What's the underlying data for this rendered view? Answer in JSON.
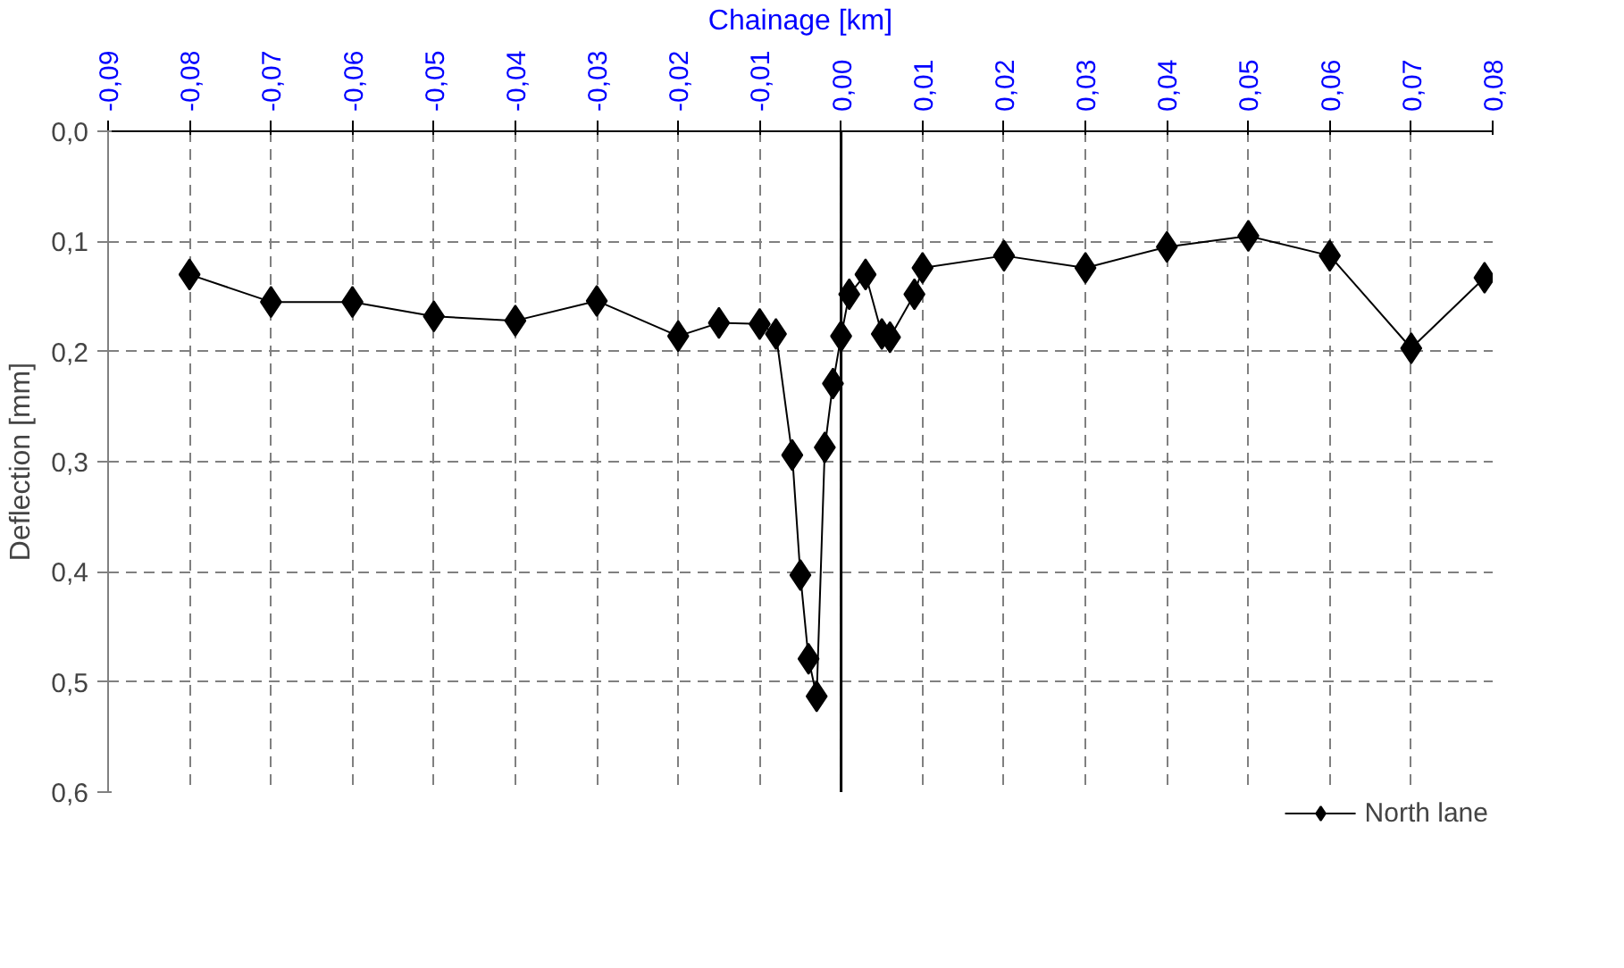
{
  "chart_data": {
    "type": "line",
    "xlabel": "Chainage [km]",
    "ylabel": "Deflection [mm]",
    "x": [
      -0.08,
      -0.07,
      -0.06,
      -0.05,
      -0.04,
      -0.03,
      -0.02,
      -0.015,
      -0.01,
      -0.008,
      -0.006,
      -0.005,
      -0.004,
      -0.003,
      -0.002,
      -0.001,
      0.0,
      0.001,
      0.003,
      0.005,
      0.006,
      0.009,
      0.01,
      0.02,
      0.03,
      0.04,
      0.05,
      0.06,
      0.07,
      0.079
    ],
    "series": [
      {
        "name": "North lane",
        "color": "#000000",
        "values": [
          0.13,
          0.155,
          0.155,
          0.168,
          0.172,
          0.154,
          0.186,
          0.174,
          0.175,
          0.184,
          0.294,
          0.403,
          0.479,
          0.513,
          0.287,
          0.229,
          0.186,
          0.148,
          0.13,
          0.184,
          0.187,
          0.148,
          0.124,
          0.113,
          0.124,
          0.105,
          0.095,
          0.113,
          0.197,
          0.133
        ]
      }
    ],
    "xlim": [
      -0.09,
      0.08
    ],
    "xticks": [
      {
        "value": -0.09,
        "label": "-0,09"
      },
      {
        "value": -0.08,
        "label": "-0,08"
      },
      {
        "value": -0.07,
        "label": "-0,07"
      },
      {
        "value": -0.06,
        "label": "-0,06"
      },
      {
        "value": -0.05,
        "label": "-0,05"
      },
      {
        "value": -0.04,
        "label": "-0,04"
      },
      {
        "value": -0.03,
        "label": "-0,03"
      },
      {
        "value": -0.02,
        "label": "-0,02"
      },
      {
        "value": -0.01,
        "label": "-0,01"
      },
      {
        "value": 0.0,
        "label": "0,00"
      },
      {
        "value": 0.01,
        "label": "0,01"
      },
      {
        "value": 0.02,
        "label": "0,02"
      },
      {
        "value": 0.03,
        "label": "0,03"
      },
      {
        "value": 0.04,
        "label": "0,04"
      },
      {
        "value": 0.05,
        "label": "0,05"
      },
      {
        "value": 0.06,
        "label": "0,06"
      },
      {
        "value": 0.07,
        "label": "0,07"
      },
      {
        "value": 0.08,
        "label": "0,08"
      }
    ],
    "ylim": [
      0.6,
      0.0
    ],
    "yticks": [
      {
        "value": 0.0,
        "label": "0,0"
      },
      {
        "value": 0.1,
        "label": "0,1"
      },
      {
        "value": 0.2,
        "label": "0,2"
      },
      {
        "value": 0.3,
        "label": "0,3"
      },
      {
        "value": 0.4,
        "label": "0,4"
      },
      {
        "value": 0.5,
        "label": "0,5"
      },
      {
        "value": 0.6,
        "label": "0,6"
      }
    ],
    "ref_lines": [
      {
        "axis": "x",
        "value": 0.0,
        "color": "#000000"
      }
    ],
    "grid": true,
    "legend": "bottom",
    "marker": "diamond",
    "line_style": "solid"
  }
}
